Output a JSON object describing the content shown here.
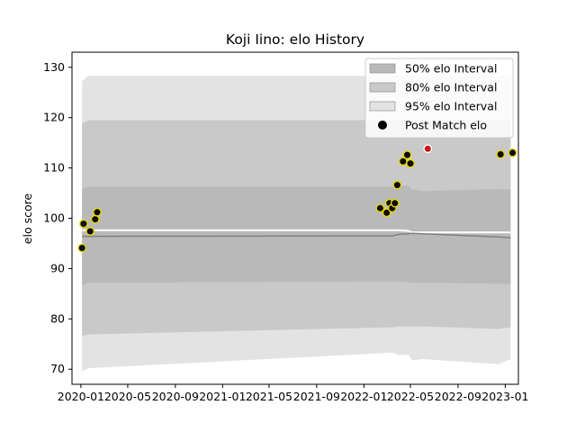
{
  "chart_data": {
    "type": "area",
    "title": "Koji Iino: elo History",
    "xlabel": "",
    "ylabel": "elo score",
    "xlim": [
      "2019-12-09",
      "2023-02-04"
    ],
    "ylim": [
      67,
      133
    ],
    "y_ticks": [
      70,
      80,
      90,
      100,
      110,
      120,
      130
    ],
    "x_ticks": [
      "2020-01",
      "2020-05",
      "2020-09",
      "2021-01",
      "2021-05",
      "2021-09",
      "2022-01",
      "2022-05",
      "2022-09",
      "2023-01"
    ],
    "grid": false,
    "legend_position": "top-right",
    "legend": [
      {
        "label": "50% elo Interval",
        "color": "#b0b0b0"
      },
      {
        "label": "80% elo Interval",
        "color": "#c8c8c8"
      },
      {
        "label": "95% elo Interval",
        "color": "#e0e0e0"
      },
      {
        "label": "Post Match elo",
        "color": "#000000"
      }
    ],
    "colors": {
      "band95": "#e3e3e3",
      "band80": "#c9c9c9",
      "band50": "#b9b9b9",
      "mean_line": "#808080",
      "median_line": "#ffffff",
      "point_fill": "#0a0a0a",
      "point_edge": "#e8d800",
      "highlight_fill": "#cc1111",
      "highlight_edge": "#ffffff"
    },
    "bands": {
      "x": [
        "2020-01-04",
        "2020-01-20",
        "2022-01-01",
        "2022-03-15",
        "2022-04-01",
        "2022-04-25",
        "2022-05-05",
        "2022-06-01",
        "2022-12-15",
        "2023-01-15"
      ],
      "p95_upper": [
        127.2,
        128.3,
        128.3,
        128.3,
        128.3,
        128.3,
        128.3,
        128.3,
        128.3,
        128.3
      ],
      "p80_upper": [
        118.8,
        119.5,
        119.5,
        119.5,
        119.5,
        119.5,
        119.5,
        119.5,
        119.5,
        119.5
      ],
      "p50_upper": [
        105.9,
        106.3,
        106.3,
        106.3,
        106.4,
        106.5,
        105.7,
        105.4,
        105.8,
        105.7
      ],
      "median": [
        97.6,
        97.6,
        97.6,
        97.6,
        97.6,
        97.5,
        97.2,
        97.2,
        97.2,
        97.2
      ],
      "mean": [
        96.4,
        96.4,
        96.5,
        96.5,
        96.8,
        96.9,
        97.0,
        96.9,
        96.3,
        96.1
      ],
      "p50_lower": [
        86.7,
        87.2,
        87.4,
        87.4,
        87.4,
        87.3,
        87.2,
        87.2,
        87.0,
        87.0
      ],
      "p80_lower": [
        76.6,
        76.9,
        78.2,
        78.3,
        78.5,
        78.5,
        78.5,
        78.5,
        78.0,
        78.3
      ],
      "p95_lower": [
        69.6,
        70.2,
        73.0,
        73.3,
        72.8,
        72.9,
        71.8,
        72.0,
        71.0,
        72.0
      ]
    },
    "points": [
      {
        "date": "2020-01-04",
        "elo": 94.1
      },
      {
        "date": "2020-01-08",
        "elo": 98.9
      },
      {
        "date": "2020-01-25",
        "elo": 97.4
      },
      {
        "date": "2020-02-07",
        "elo": 99.8
      },
      {
        "date": "2020-02-12",
        "elo": 101.2
      },
      {
        "date": "2022-02-12",
        "elo": 102.0
      },
      {
        "date": "2022-03-01",
        "elo": 101.1
      },
      {
        "date": "2022-03-08",
        "elo": 103.0
      },
      {
        "date": "2022-03-15",
        "elo": 102.0
      },
      {
        "date": "2022-03-22",
        "elo": 103.0
      },
      {
        "date": "2022-03-28",
        "elo": 106.6
      },
      {
        "date": "2022-04-12",
        "elo": 111.3
      },
      {
        "date": "2022-04-23",
        "elo": 112.6
      },
      {
        "date": "2022-05-01",
        "elo": 110.9
      },
      {
        "date": "2022-06-15",
        "elo": 113.8,
        "highlight": true
      },
      {
        "date": "2022-12-20",
        "elo": 112.7
      },
      {
        "date": "2023-01-20",
        "elo": 113.0
      }
    ]
  }
}
